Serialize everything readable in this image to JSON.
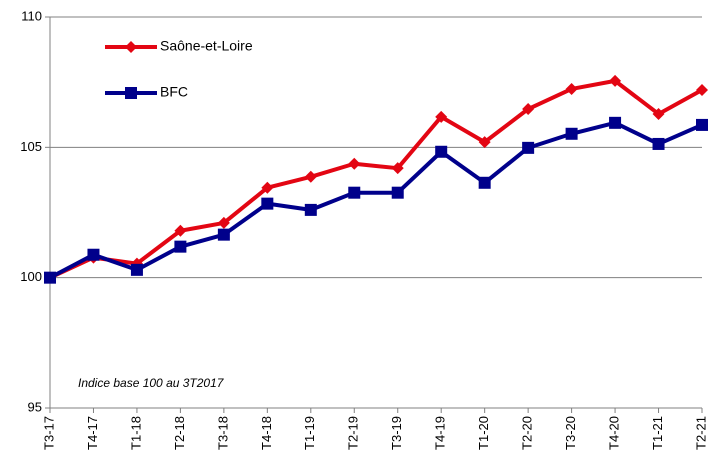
{
  "chart_data": {
    "type": "line",
    "annotation": "Indice base 100 au 3T2017",
    "categories": [
      "T3-17",
      "T4-17",
      "T1-18",
      "T2-18",
      "T3-18",
      "T4-18",
      "T1-19",
      "T2-19",
      "T3-19",
      "T4-19",
      "T1-20",
      "T2-20",
      "T3-20",
      "T4-20",
      "T1-21",
      "T2-21"
    ],
    "series": [
      {
        "name": "Saône-et-Loire",
        "color": "#e30613",
        "marker": "diamond",
        "values": [
          100,
          100.77,
          100.54,
          101.8,
          102.1,
          103.45,
          103.87,
          104.37,
          104.2,
          106.17,
          105.2,
          106.47,
          107.24,
          107.55,
          106.28,
          107.2
        ]
      },
      {
        "name": "BFC",
        "color": "#00008b",
        "marker": "square",
        "values": [
          100,
          100.88,
          100.3,
          101.19,
          101.65,
          102.84,
          102.6,
          103.26,
          103.26,
          104.83,
          103.64,
          104.98,
          105.52,
          105.94,
          105.13,
          105.86
        ]
      }
    ],
    "ylim": [
      95,
      110
    ],
    "yticks": [
      95,
      100,
      105,
      110
    ],
    "grid": true,
    "legend": "upper left"
  }
}
